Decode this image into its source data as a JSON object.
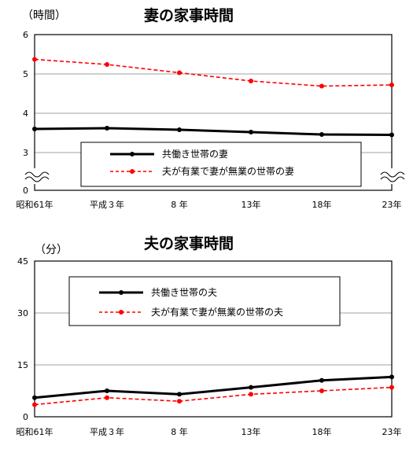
{
  "chart_data": [
    {
      "type": "line",
      "title": "妻の家事時間",
      "unit_label": "（時間）",
      "categories": [
        "昭和61年",
        "平成３年",
        "8 年",
        "13年",
        "18年",
        "23年"
      ],
      "y_ticks": [
        "0",
        "3",
        "4",
        "5",
        "6"
      ],
      "ylim": [
        0,
        6
      ],
      "axis_break": true,
      "grid": true,
      "legend_position": "bottom-center",
      "series": [
        {
          "name": "共働き世帯の妻",
          "values": [
            3.6,
            3.62,
            3.58,
            3.52,
            3.46,
            3.45
          ],
          "color": "#000000",
          "style": "solid"
        },
        {
          "name": "夫が有業で妻が無業の世帯の妻",
          "values": [
            5.37,
            5.24,
            5.03,
            4.82,
            4.69,
            4.72
          ],
          "color": "#ff0000",
          "style": "dashed"
        }
      ]
    },
    {
      "type": "line",
      "title": "夫の家事時間",
      "unit_label": "（分）",
      "categories": [
        "昭和61年",
        "平成３年",
        "8 年",
        "13年",
        "18年",
        "23年"
      ],
      "y_ticks": [
        "0",
        "15",
        "30",
        "45"
      ],
      "ylim": [
        0,
        45
      ],
      "grid": true,
      "legend_position": "top-center",
      "series": [
        {
          "name": "共働き世帯の夫",
          "values": [
            5.5,
            7.5,
            6.5,
            8.5,
            10.5,
            11.5
          ],
          "color": "#000000",
          "style": "solid"
        },
        {
          "name": "夫が有業で妻が無業の世帯の夫",
          "values": [
            3.5,
            5.5,
            4.5,
            6.5,
            7.5,
            8.5
          ],
          "color": "#ff0000",
          "style": "dashed"
        }
      ]
    }
  ]
}
